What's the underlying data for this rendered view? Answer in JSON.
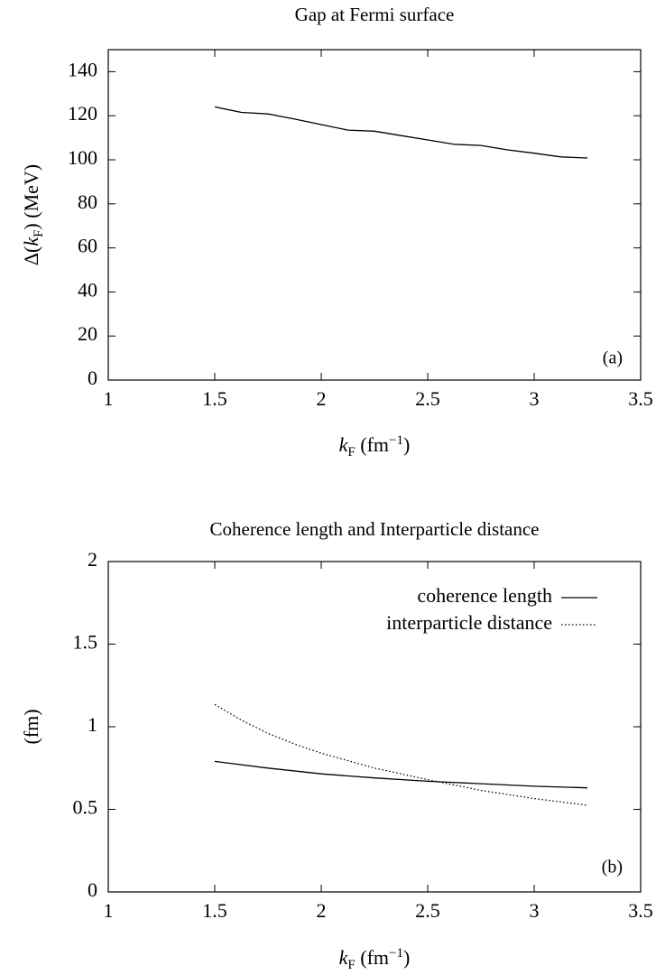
{
  "chart_data": [
    {
      "type": "line",
      "title": "Gap at Fermi surface",
      "xlabel_parts": {
        "var": "k",
        "sub": "F",
        "unit_open": " (fm",
        "sup": "−1",
        "unit_close": ")"
      },
      "ylabel_parts": {
        "prefix": "Δ(",
        "var": "k",
        "sub": "F",
        "suffix": ") (MeV)"
      },
      "xlim": [
        1,
        3.5
      ],
      "ylim": [
        0,
        150
      ],
      "xticks": [
        "1",
        "1.5",
        "2",
        "2.5",
        "3",
        "3.5"
      ],
      "yticks": [
        "0",
        "20",
        "40",
        "60",
        "80",
        "100",
        "120",
        "140"
      ],
      "panel_label": "(a)",
      "series": [
        {
          "style": "solid",
          "x": [
            1.5,
            1.625,
            1.75,
            1.875,
            2.0,
            2.125,
            2.25,
            2.375,
            2.5,
            2.625,
            2.75,
            2.875,
            3.0,
            3.125,
            3.25
          ],
          "y": [
            124,
            121.5,
            120.8,
            118.5,
            116,
            113.5,
            113,
            111,
            109,
            107,
            106.5,
            104.5,
            103,
            101.3,
            100.8
          ]
        }
      ]
    },
    {
      "type": "line",
      "title": "Coherence length and Interparticle distance",
      "xlabel_parts": {
        "var": "k",
        "sub": "F",
        "unit_open": " (fm",
        "sup": "−1",
        "unit_close": ")"
      },
      "ylabel": "(fm)",
      "xlim": [
        1,
        3.5
      ],
      "ylim": [
        0,
        2
      ],
      "xticks": [
        "1",
        "1.5",
        "2",
        "2.5",
        "3",
        "3.5"
      ],
      "yticks": [
        "0",
        "0.5",
        "1",
        "1.5",
        "2"
      ],
      "panel_label": "(b)",
      "legend_position": "top-right",
      "series": [
        {
          "name": "coherence length",
          "style": "solid",
          "x": [
            1.5,
            1.75,
            2.0,
            2.25,
            2.5,
            2.75,
            3.0,
            3.25
          ],
          "y": [
            0.79,
            0.75,
            0.715,
            0.69,
            0.67,
            0.655,
            0.64,
            0.63
          ]
        },
        {
          "name": "interparticle distance",
          "style": "dotted",
          "x": [
            1.5,
            1.625,
            1.75,
            1.875,
            2.0,
            2.25,
            2.5,
            2.75,
            3.0,
            3.25
          ],
          "y": [
            1.135,
            1.04,
            0.96,
            0.895,
            0.84,
            0.75,
            0.68,
            0.615,
            0.565,
            0.525
          ]
        }
      ]
    }
  ]
}
